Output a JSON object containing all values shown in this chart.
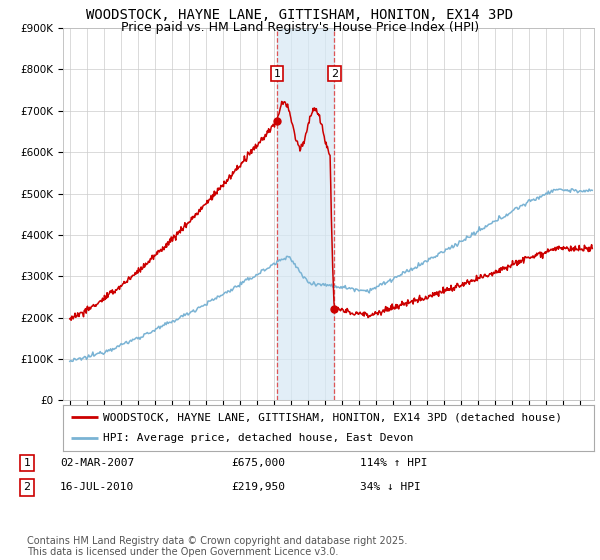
{
  "title": "WOODSTOCK, HAYNE LANE, GITTISHAM, HONITON, EX14 3PD",
  "subtitle": "Price paid vs. HM Land Registry's House Price Index (HPI)",
  "ylim": [
    0,
    900000
  ],
  "yticks": [
    0,
    100000,
    200000,
    300000,
    400000,
    500000,
    600000,
    700000,
    800000,
    900000
  ],
  "ytick_labels": [
    "£0",
    "£100K",
    "£200K",
    "£300K",
    "£400K",
    "£500K",
    "£600K",
    "£700K",
    "£800K",
    "£900K"
  ],
  "hpi_color": "#7ab3d4",
  "price_color": "#cc0000",
  "shading_color": "#d6e8f5",
  "dashed_line_color": "#dd4444",
  "background_color": "#ffffff",
  "grid_color": "#cccccc",
  "sale1": {
    "date": "02-MAR-2007",
    "price": 675000,
    "label": "1",
    "hpi_pct": "114%",
    "arrow": "↑"
  },
  "sale2": {
    "date": "16-JUL-2010",
    "price": 219950,
    "label": "2",
    "hpi_pct": "34%",
    "arrow": "↓"
  },
  "sale1_x": 2007.17,
  "sale2_x": 2010.54,
  "legend_line1": "WOODSTOCK, HAYNE LANE, GITTISHAM, HONITON, EX14 3PD (detached house)",
  "legend_line2": "HPI: Average price, detached house, East Devon",
  "footnote": "Contains HM Land Registry data © Crown copyright and database right 2025.\nThis data is licensed under the Open Government Licence v3.0.",
  "title_fontsize": 10,
  "subtitle_fontsize": 9,
  "tick_fontsize": 7.5,
  "legend_fontsize": 8,
  "footnote_fontsize": 7
}
